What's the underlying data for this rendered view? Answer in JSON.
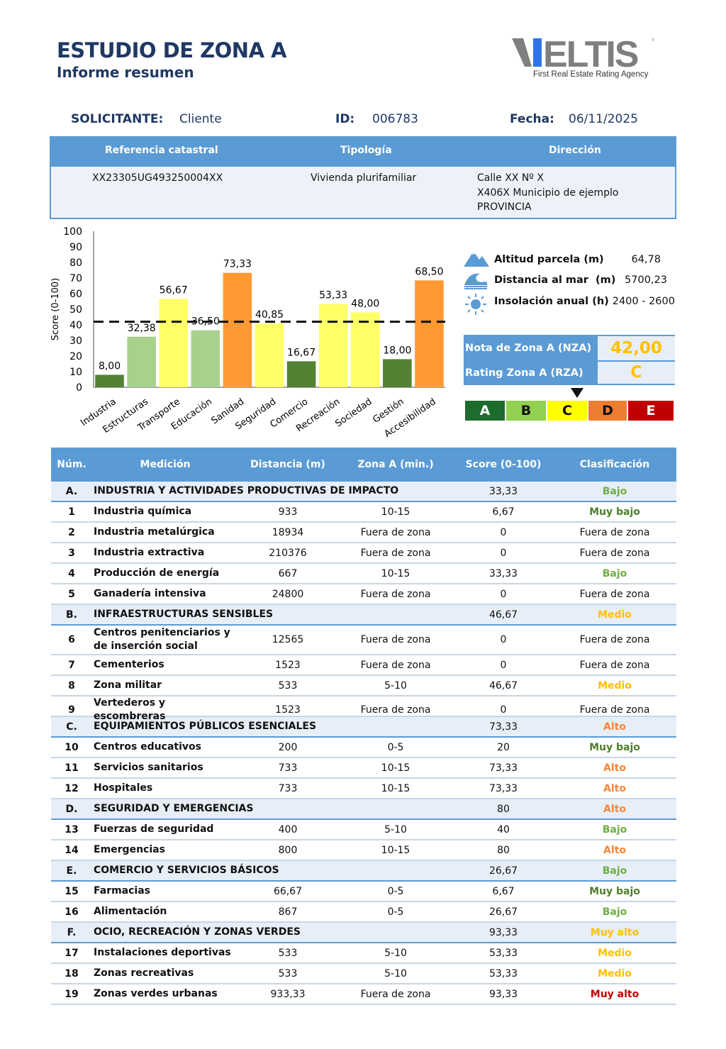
{
  "header": {
    "title": "ESTUDIO DE ZONA A",
    "subtitle": "Informe resumen",
    "logo_text": "VELTIS",
    "logo_tagline": "First Real Estate Rating Agency"
  },
  "meta": {
    "solicitante_label": "SOLICITANTE:",
    "solicitante": "Cliente",
    "id_label": "ID:",
    "id": "006783",
    "fecha_label": "Fecha:",
    "fecha": "06/11/2025"
  },
  "info": {
    "headers": [
      "Referencia catastral",
      "Tipología",
      "Dirección"
    ],
    "referencia": "XX23305UG493250004XX",
    "tipologia": "Vivienda plurifamiliar",
    "direccion": [
      "Calle XX Nº X",
      "X406X Municipio de ejemplo",
      "PROVINCIA"
    ]
  },
  "chart_data": {
    "type": "bar",
    "ylabel": "Score (0-100)",
    "ylim": [
      0,
      100
    ],
    "yticks": [
      0,
      10,
      20,
      30,
      40,
      50,
      60,
      70,
      80,
      90,
      100
    ],
    "categories": [
      "Industria",
      "Estructuras",
      "Transporte",
      "Educación",
      "Sanidad",
      "Seguridad",
      "Comercio",
      "Recreación",
      "Sociedad",
      "Gestión",
      "Accesibilidad"
    ],
    "values": [
      8.0,
      32.38,
      56.67,
      36.5,
      73.33,
      40.85,
      16.67,
      53.33,
      48.0,
      18.0,
      68.5
    ],
    "labels": [
      "8,00",
      "32,38",
      "56,67",
      "36,50",
      "73,33",
      "40,85",
      "16,67",
      "53,33",
      "48,00",
      "18,00",
      "68,50"
    ],
    "colors": [
      "#548235",
      "#a9d18e",
      "#ffff66",
      "#a9d18e",
      "#ff9933",
      "#ffff66",
      "#548235",
      "#ffff66",
      "#ffff66",
      "#548235",
      "#ff9933"
    ],
    "reference_line": 42.0,
    "grid": false
  },
  "side": {
    "items": [
      {
        "icon": "mountain-icon",
        "label": "Altitud parcela (m)",
        "value": "64,78"
      },
      {
        "icon": "wave-icon",
        "label": "Distancia al mar  (m)",
        "value": "5700,23"
      },
      {
        "icon": "sun-icon",
        "label": "Insolación anual (h)",
        "value": "2400 - 2600"
      }
    ],
    "nza_label": "Nota de Zona A (NZA)",
    "nza": "42,00",
    "rza_label": "Rating Zona A (RZA)",
    "rza": "C",
    "ratings": [
      {
        "l": "A",
        "bg": "#1e6b2e",
        "fg": "#fff"
      },
      {
        "l": "B",
        "bg": "#92d050",
        "fg": "#111"
      },
      {
        "l": "C",
        "bg": "#ffff00",
        "fg": "#111"
      },
      {
        "l": "D",
        "bg": "#ed7d31",
        "fg": "#111"
      },
      {
        "l": "E",
        "bg": "#c00000",
        "fg": "#fff"
      }
    ]
  },
  "class_colors": {
    "Muy bajo": "#4e7f2a",
    "Bajo": "#70ad47",
    "Medio": "#ffc000",
    "Alto": "#f4873a",
    "Muy alto": "#ffc000",
    "Muy alto r": "#c00000",
    "Fuera de zona": "#222"
  },
  "table": {
    "headers": [
      "Núm.",
      "Medición",
      "Distancia (m)",
      "Zona A (min.)",
      "Score (0-100)",
      "Clasificación"
    ],
    "rows": [
      {
        "g": 1,
        "n": "A.",
        "m": "INDUSTRIA Y ACTIVIDADES PRODUCTIVAS DE IMPACTO",
        "s": "33,33",
        "c": "Bajo",
        "col": "#70ad47"
      },
      {
        "n": "1",
        "m": "Industria química",
        "d": "933",
        "z": "10-15",
        "s": "6,67",
        "c": "Muy bajo",
        "col": "#4e7f2a"
      },
      {
        "n": "2",
        "m": "Industria metalúrgica",
        "d": "18934",
        "z": "Fuera de zona",
        "s": "0",
        "c": "Fuera de zona"
      },
      {
        "n": "3",
        "m": "Industria extractiva",
        "d": "210376",
        "z": "Fuera de zona",
        "s": "0",
        "c": "Fuera de zona"
      },
      {
        "n": "4",
        "m": "Producción de energía",
        "d": "667",
        "z": "10-15",
        "s": "33,33",
        "c": "Bajo",
        "col": "#70ad47"
      },
      {
        "n": "5",
        "m": "Ganadería intensiva",
        "d": "24800",
        "z": "Fuera de zona",
        "s": "0",
        "c": "Fuera de zona"
      },
      {
        "g": 1,
        "n": "B.",
        "m": "INFRAESTRUCTURAS SENSIBLES",
        "s": "46,67",
        "c": "Medio",
        "col": "#ffc000"
      },
      {
        "n": "6",
        "m": "Centros penitenciarios y de inserción social",
        "d": "12565",
        "z": "Fuera de zona",
        "s": "0",
        "c": "Fuera de zona",
        "tall": 1
      },
      {
        "n": "7",
        "m": "Cementerios",
        "d": "1523",
        "z": "Fuera de zona",
        "s": "0",
        "c": "Fuera de zona"
      },
      {
        "n": "8",
        "m": "Zona militar",
        "d": "533",
        "z": "5-10",
        "s": "46,67",
        "c": "Medio",
        "col": "#ffc000"
      },
      {
        "n": "9",
        "m": "Vertederos y escombreras",
        "d": "1523",
        "z": "Fuera de zona",
        "s": "0",
        "c": "Fuera de zona"
      },
      {
        "g": 1,
        "n": "C.",
        "m": "EQUIPAMIENTOS PÚBLICOS ESENCIALES",
        "s": "73,33",
        "c": "Alto",
        "col": "#f4873a"
      },
      {
        "n": "10",
        "m": "Centros educativos",
        "d": "200",
        "z": "0-5",
        "s": "20",
        "c": "Muy bajo",
        "col": "#4e7f2a"
      },
      {
        "n": "11",
        "m": "Servicios sanitarios",
        "d": "733",
        "z": "10-15",
        "s": "73,33",
        "c": "Alto",
        "col": "#f4873a"
      },
      {
        "n": "12",
        "m": "Hospitales",
        "d": "733",
        "z": "10-15",
        "s": "73,33",
        "c": "Alto",
        "col": "#f4873a"
      },
      {
        "g": 1,
        "n": "D.",
        "m": "SEGURIDAD Y EMERGENCIAS",
        "s": "80",
        "c": "Alto",
        "col": "#f4873a"
      },
      {
        "n": "13",
        "m": "Fuerzas de seguridad",
        "d": "400",
        "z": "5-10",
        "s": "40",
        "c": "Bajo",
        "col": "#70ad47"
      },
      {
        "n": "14",
        "m": "Emergencias",
        "d": "800",
        "z": "10-15",
        "s": "80",
        "c": "Alto",
        "col": "#f4873a"
      },
      {
        "g": 1,
        "n": "E.",
        "m": "COMERCIO Y SERVICIOS BÁSICOS",
        "s": "26,67",
        "c": "Bajo",
        "col": "#70ad47"
      },
      {
        "n": "15",
        "m": "Farmacias",
        "d": "66,67",
        "z": "0-5",
        "s": "6,67",
        "c": "Muy bajo",
        "col": "#4e7f2a"
      },
      {
        "n": "16",
        "m": "Alimentación",
        "d": "867",
        "z": "0-5",
        "s": "26,67",
        "c": "Bajo",
        "col": "#70ad47"
      },
      {
        "g": 1,
        "n": "F.",
        "m": "OCIO, RECREACIÓN Y ZONAS VERDES",
        "s": "93,33",
        "c": "Muy alto",
        "col": "#ffc000"
      },
      {
        "n": "17",
        "m": "Instalaciones deportivas",
        "d": "533",
        "z": "5-10",
        "s": "53,33",
        "c": "Medio",
        "col": "#ffc000"
      },
      {
        "n": "18",
        "m": "Zonas recreativas",
        "d": "533",
        "z": "5-10",
        "s": "53,33",
        "c": "Medio",
        "col": "#ffc000"
      },
      {
        "n": "19",
        "m": "Zonas verdes urbanas",
        "d": "933,33",
        "z": "Fuera de zona",
        "s": "93,33",
        "c": "Muy alto",
        "col": "#c00000"
      }
    ]
  }
}
